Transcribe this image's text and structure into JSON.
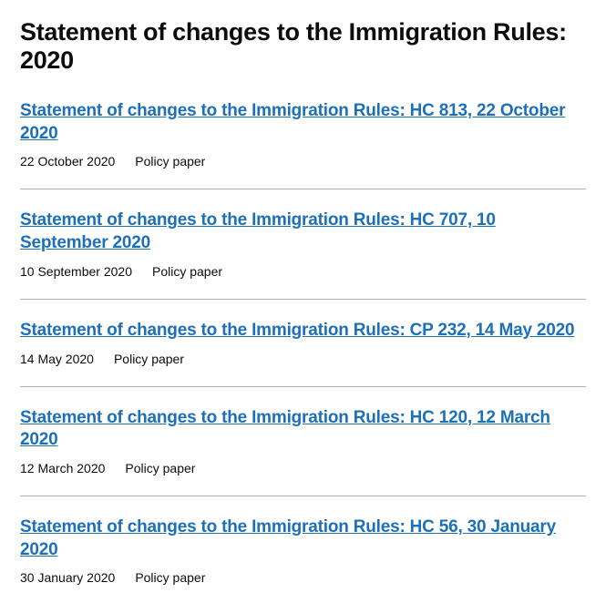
{
  "page_title": "Statement of changes to the Immigration Rules: 2020",
  "link_color": "#1d70b8",
  "text_color": "#0b0c0c",
  "divider_color": "#b1b4b6",
  "documents": [
    {
      "title": "Statement of changes to the Immigration Rules: HC 813, 22 October 2020",
      "date": "22 October 2020",
      "type": "Policy paper"
    },
    {
      "title": "Statement of changes to the Immigration Rules: HC 707, 10 September 2020",
      "date": "10 September 2020",
      "type": "Policy paper"
    },
    {
      "title": "Statement of changes to the Immigration Rules: CP 232, 14 May 2020",
      "date": "14 May 2020",
      "type": "Policy paper"
    },
    {
      "title": "Statement of changes to the Immigration Rules: HC 120, 12 March 2020",
      "date": "12 March 2020",
      "type": "Policy paper"
    },
    {
      "title": "Statement of changes to the Immigration Rules: HC 56, 30 January 2020",
      "date": "30 January 2020",
      "type": "Policy paper"
    }
  ]
}
